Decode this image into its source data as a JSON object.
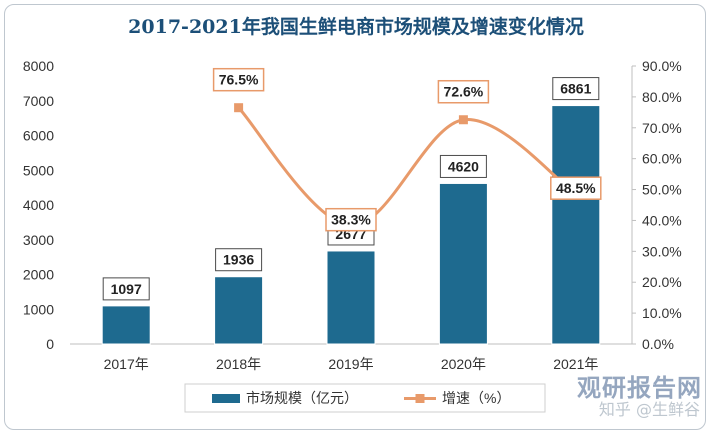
{
  "title": "2017-2021年我国生鲜电商市场规模及增速变化情况",
  "chart_data": {
    "type": "bar",
    "categories": [
      "2017年",
      "2018年",
      "2019年",
      "2020年",
      "2021年"
    ],
    "series": [
      {
        "name": "市场规模（亿元）",
        "type": "bar",
        "axis": "left",
        "values": [
          1097,
          1936,
          2677,
          4620,
          6861
        ],
        "labels": [
          "1097",
          "1936",
          "2677",
          "4620",
          "6861"
        ],
        "color": "#1e6a8f"
      },
      {
        "name": "增速（%）",
        "type": "line",
        "axis": "right",
        "values": [
          null,
          76.5,
          38.3,
          72.6,
          48.5
        ],
        "labels": [
          "",
          "76.5%",
          "38.3%",
          "72.6%",
          "48.5%"
        ],
        "color": "#e89a6a"
      }
    ],
    "ylim_left": [
      0,
      8000
    ],
    "yticks_left": [
      "0",
      "1000",
      "2000",
      "3000",
      "4000",
      "5000",
      "6000",
      "7000",
      "8000"
    ],
    "ylim_right": [
      0,
      90
    ],
    "yticks_right": [
      "0.0%",
      "10.0%",
      "20.0%",
      "30.0%",
      "40.0%",
      "50.0%",
      "60.0%",
      "70.0%",
      "80.0%",
      "90.0%"
    ],
    "legend_position": "bottom",
    "grid": false
  },
  "watermark": {
    "logo": "观研报告网",
    "sub": "知乎 @生鲜谷"
  }
}
